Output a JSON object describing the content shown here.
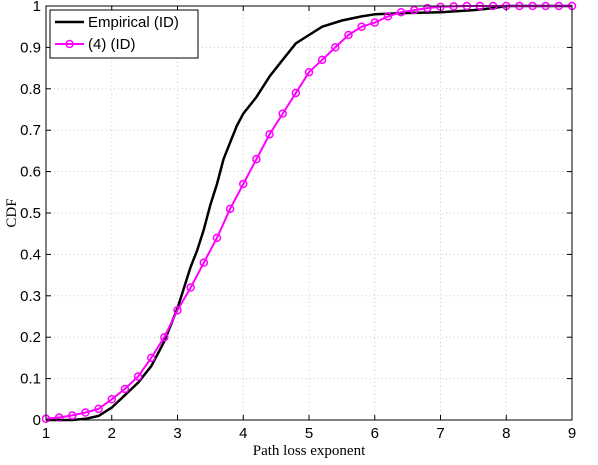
{
  "chart_data": {
    "type": "line",
    "title": "",
    "xlabel": "Path loss exponent",
    "ylabel": "CDF",
    "xlim": [
      1,
      9
    ],
    "ylim": [
      0,
      1
    ],
    "xticks": [
      1,
      2,
      3,
      4,
      5,
      6,
      7,
      8,
      9
    ],
    "yticks": [
      0,
      0.1,
      0.2,
      0.3,
      0.4,
      0.5,
      0.6,
      0.7,
      0.8,
      0.9,
      1
    ],
    "grid": true,
    "legend_position": "top-left",
    "series": [
      {
        "name": "Empirical (ID)",
        "color": "#000000",
        "marker": "none",
        "x": [
          1.0,
          1.4,
          1.6,
          1.8,
          1.9,
          2.0,
          2.1,
          2.2,
          2.3,
          2.4,
          2.5,
          2.6,
          2.7,
          2.8,
          2.9,
          3.0,
          3.1,
          3.2,
          3.3,
          3.4,
          3.5,
          3.6,
          3.7,
          3.8,
          3.9,
          4.0,
          4.2,
          4.4,
          4.6,
          4.8,
          5.0,
          5.2,
          5.5,
          5.8,
          6.0,
          6.5,
          7.0,
          7.5,
          7.8,
          8.0,
          8.5,
          9.0
        ],
        "y": [
          0.0,
          0.0,
          0.003,
          0.01,
          0.02,
          0.03,
          0.045,
          0.06,
          0.075,
          0.09,
          0.11,
          0.13,
          0.16,
          0.19,
          0.23,
          0.27,
          0.32,
          0.37,
          0.41,
          0.46,
          0.52,
          0.57,
          0.63,
          0.67,
          0.71,
          0.74,
          0.78,
          0.83,
          0.87,
          0.91,
          0.93,
          0.95,
          0.965,
          0.975,
          0.98,
          0.983,
          0.985,
          0.99,
          0.995,
          1.0,
          1.0,
          1.0
        ]
      },
      {
        "name": "(4) (ID)",
        "color": "#ff00ff",
        "marker": "circle",
        "x": [
          1.0,
          1.2,
          1.4,
          1.6,
          1.8,
          2.0,
          2.2,
          2.4,
          2.6,
          2.8,
          3.0,
          3.2,
          3.4,
          3.6,
          3.8,
          4.0,
          4.2,
          4.4,
          4.6,
          4.8,
          5.0,
          5.2,
          5.4,
          5.6,
          5.8,
          6.0,
          6.2,
          6.4,
          6.6,
          6.8,
          7.0,
          7.2,
          7.4,
          7.6,
          7.8,
          8.0,
          8.2,
          8.4,
          8.6,
          8.8,
          9.0
        ],
        "y": [
          0.003,
          0.006,
          0.011,
          0.018,
          0.027,
          0.05,
          0.075,
          0.105,
          0.15,
          0.2,
          0.265,
          0.32,
          0.38,
          0.44,
          0.51,
          0.57,
          0.63,
          0.69,
          0.74,
          0.79,
          0.84,
          0.87,
          0.9,
          0.93,
          0.95,
          0.96,
          0.975,
          0.985,
          0.99,
          0.995,
          0.998,
          0.999,
          1.0,
          1.0,
          1.0,
          1.0,
          1.0,
          1.0,
          1.0,
          1.0,
          1.0
        ]
      }
    ]
  }
}
